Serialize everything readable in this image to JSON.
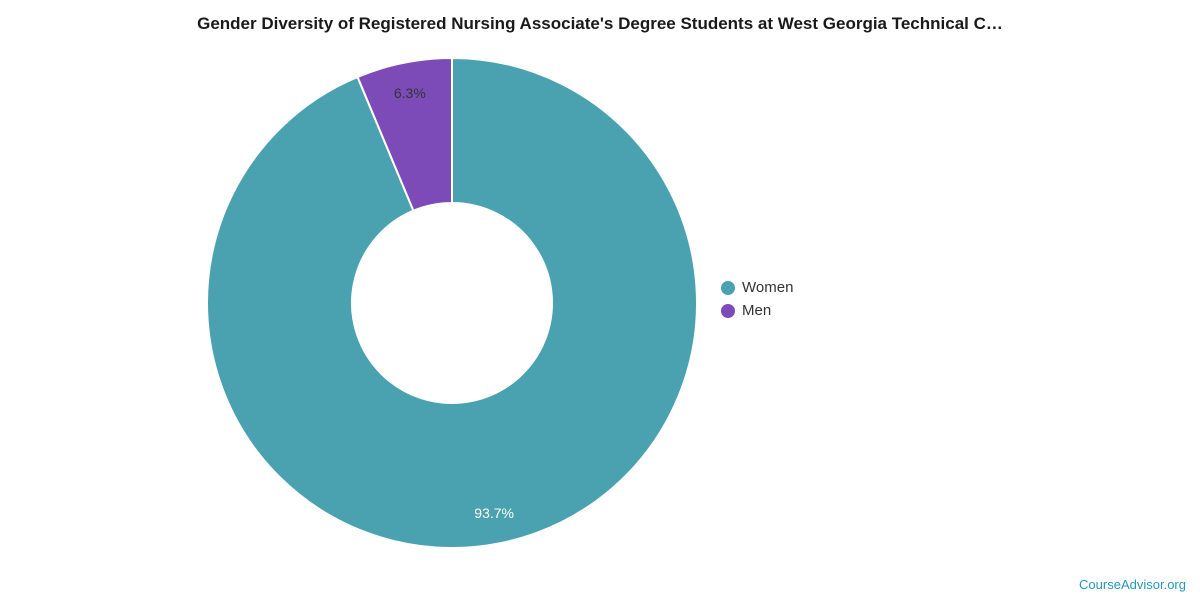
{
  "page": {
    "title": "Gender Diversity of Registered Nursing Associate's Degree Students at West Georgia Technical C…",
    "footer_link": "CourseAdvisor.org"
  },
  "colors": {
    "women": "#4aa2b1",
    "men": "#7d4bb8",
    "slice_separator": "#ffffff",
    "title_text": "#1a1a1a",
    "legend_text": "#333333",
    "footer_link": "#2596be"
  },
  "chart_data": {
    "type": "pie",
    "subtype": "donut",
    "title": "Gender Diversity of Registered Nursing Associate's Degree Students at West Georgia Technical C…",
    "legend_position": "right",
    "start_angle_deg": 0,
    "direction": "clockwise",
    "inner_radius_ratio": 0.41,
    "series": [
      {
        "name": "Women",
        "value": 93.7,
        "label": "93.7%",
        "color": "#4aa2b1",
        "label_color": "#ffffff"
      },
      {
        "name": "Men",
        "value": 6.3,
        "label": "6.3%",
        "color": "#7d4bb8",
        "label_color": "#333333"
      }
    ]
  },
  "legend": {
    "items": [
      {
        "label": "Women"
      },
      {
        "label": "Men"
      }
    ]
  }
}
